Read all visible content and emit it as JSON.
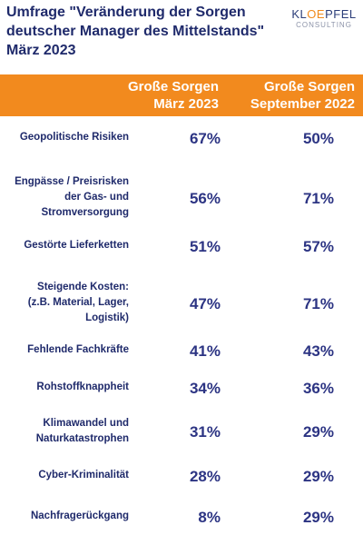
{
  "title_lines": [
    "Umfrage \"Veränderung der Sorgen",
    "deutscher Manager des Mittelstands\"",
    "März 2023"
  ],
  "logo": {
    "top_pre": "KL",
    "top_oe": "OE",
    "top_post": "PFEL",
    "bottom": "CONSULTING"
  },
  "colors": {
    "header_bg": "#f28a1e",
    "text": "#1f2a6b",
    "values": "#2c3483"
  },
  "chart_data": {
    "type": "table",
    "columns": [
      {
        "name_lines": [
          "Große Sorgen",
          "März 2023"
        ]
      },
      {
        "name_lines": [
          "Große Sorgen",
          "September 2022"
        ]
      }
    ],
    "rows": [
      {
        "label_lines": [
          "Geopolitische Risiken"
        ],
        "values": [
          "67%",
          "50%"
        ]
      },
      {
        "label_lines": [
          "Engpässe / Preisrisken",
          "der Gas- und",
          "Stromversorgung"
        ],
        "values": [
          "56%",
          "71%"
        ]
      },
      {
        "label_lines": [
          "Gestörte Lieferketten"
        ],
        "values": [
          "51%",
          "57%"
        ]
      },
      {
        "label_lines": [
          "Steigende Kosten:",
          "(z.B. Material, Lager,",
          "Logistik)"
        ],
        "values": [
          "47%",
          "71%"
        ]
      },
      {
        "label_lines": [
          "Fehlende Fachkräfte"
        ],
        "values": [
          "41%",
          "43%"
        ]
      },
      {
        "label_lines": [
          "Rohstoffknappheit"
        ],
        "values": [
          "34%",
          "36%"
        ]
      },
      {
        "label_lines": [
          "Klimawandel und",
          "Naturkatastrophen"
        ],
        "values": [
          "31%",
          "29%"
        ]
      },
      {
        "label_lines": [
          "Cyber-Kriminalität"
        ],
        "values": [
          "28%",
          "29%"
        ]
      },
      {
        "label_lines": [
          "Nachfragerückgang"
        ],
        "values": [
          "8%",
          "29%"
        ]
      }
    ]
  }
}
